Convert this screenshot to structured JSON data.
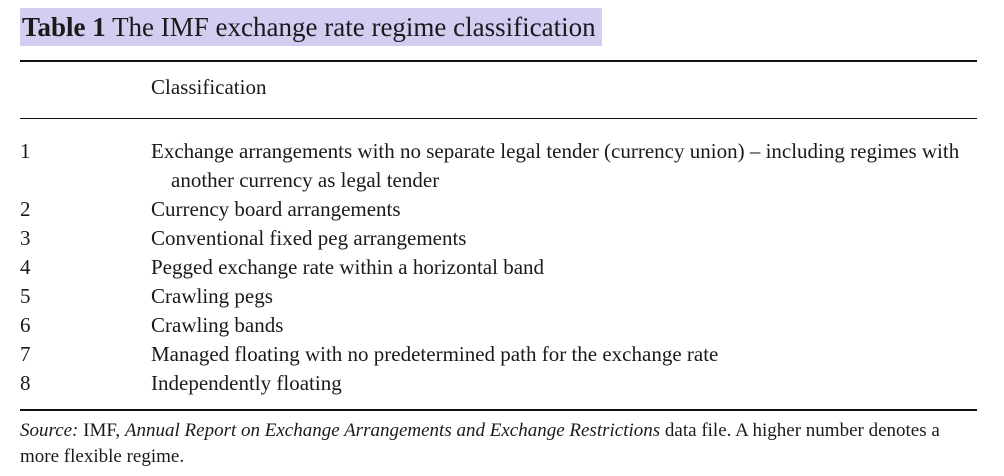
{
  "table": {
    "title_number": "Table 1",
    "title_text": "The IMF exchange rate regime classification",
    "column_header": "Classification",
    "rows": [
      {
        "num": "1",
        "text": "Exchange arrangements with no separate legal tender (currency union) – including regimes with another currency as legal tender"
      },
      {
        "num": "2",
        "text": "Currency board arrangements"
      },
      {
        "num": "3",
        "text": "Conventional fixed peg arrangements"
      },
      {
        "num": "4",
        "text": "Pegged exchange rate within a horizontal band"
      },
      {
        "num": "5",
        "text": "Crawling pegs"
      },
      {
        "num": "6",
        "text": "Crawling bands"
      },
      {
        "num": "7",
        "text": "Managed floating with no predetermined path for the exchange rate"
      },
      {
        "num": "8",
        "text": "Independently floating"
      }
    ],
    "source": {
      "label": "Source:",
      "org": "IMF,",
      "publication": "Annual Report on Exchange Arrangements and Exchange Restrictions",
      "rest": "data file. A higher number denotes a more flexible regime."
    },
    "highlight_color": "#d3cdf1"
  }
}
